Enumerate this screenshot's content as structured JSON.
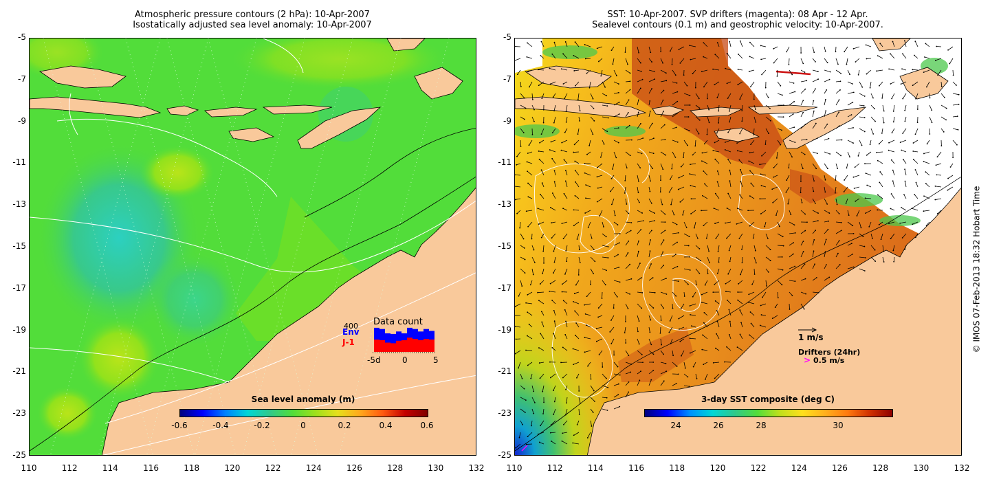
{
  "left": {
    "title_line1": "Atmospheric pressure contours (2 hPa): 10-Apr-2007",
    "title_line2": "Isostatically adjusted sea level anomaly: 10-Apr-2007",
    "x_ticks": [
      "110",
      "112",
      "114",
      "116",
      "118",
      "120",
      "122",
      "124",
      "126",
      "128",
      "130",
      "132"
    ],
    "y_ticks": [
      "-5",
      "-7",
      "-9",
      "-11",
      "-13",
      "-15",
      "-17",
      "-19",
      "-21",
      "-23",
      "-25"
    ],
    "colorbar": {
      "title": "Sea level anomaly (m)",
      "ticks": [
        "-0.6",
        "-0.4",
        "-0.2",
        "0",
        "0.2",
        "0.4",
        "0.6"
      ],
      "range": [
        -0.6,
        0.6
      ]
    },
    "data_count": {
      "title": "Data count",
      "max_label": "400",
      "series": [
        {
          "name": "Env",
          "color": "#0000ff"
        },
        {
          "name": "J-1",
          "color": "#ff0000"
        }
      ],
      "x_ticks": [
        "-5d",
        "0",
        "5"
      ],
      "env_values": [
        390,
        370,
        300,
        290,
        330,
        300,
        390,
        370,
        330,
        370,
        340
      ],
      "j1_values": [
        200,
        190,
        150,
        140,
        180,
        190,
        230,
        210,
        190,
        210,
        200
      ]
    },
    "colors": {
      "land": "#f9c99b",
      "sea_main": "#52dd3a",
      "sea_high": "#7de01c",
      "sea_low": "#33c995"
    }
  },
  "right": {
    "title_line1": "SST: 10-Apr-2007. SVP drifters (magenta): 08 Apr - 12 Apr.",
    "title_line2": "Sealevel contours (0.1 m) and geostrophic velocity: 10-Apr-2007.",
    "x_ticks": [
      "110",
      "112",
      "114",
      "116",
      "118",
      "120",
      "122",
      "124",
      "126",
      "128",
      "130",
      "132"
    ],
    "y_ticks": [
      "-5",
      "-7",
      "-9",
      "-11",
      "-13",
      "-15",
      "-17",
      "-19",
      "-21",
      "-23",
      "-25"
    ],
    "colorbar": {
      "title": "3-day SST composite (deg C)",
      "ticks": [
        "24",
        "26",
        "28",
        "30"
      ],
      "range": [
        22.8,
        31.8
      ]
    },
    "legend": {
      "velocity_label": "1 m/s",
      "drifters_label": "Drifters (24hr)",
      "drifter_speed_label": "0.5 m/s",
      "drifter_symbol": ">"
    },
    "colors": {
      "land": "#f9c99b",
      "warm": "#e9901c",
      "hot": "#c74a16",
      "cool": "#f5d21c",
      "drifter": "#ff00ff"
    }
  },
  "copyright": "© IMOS 07-Feb-2013 18:32 Hobart Time"
}
